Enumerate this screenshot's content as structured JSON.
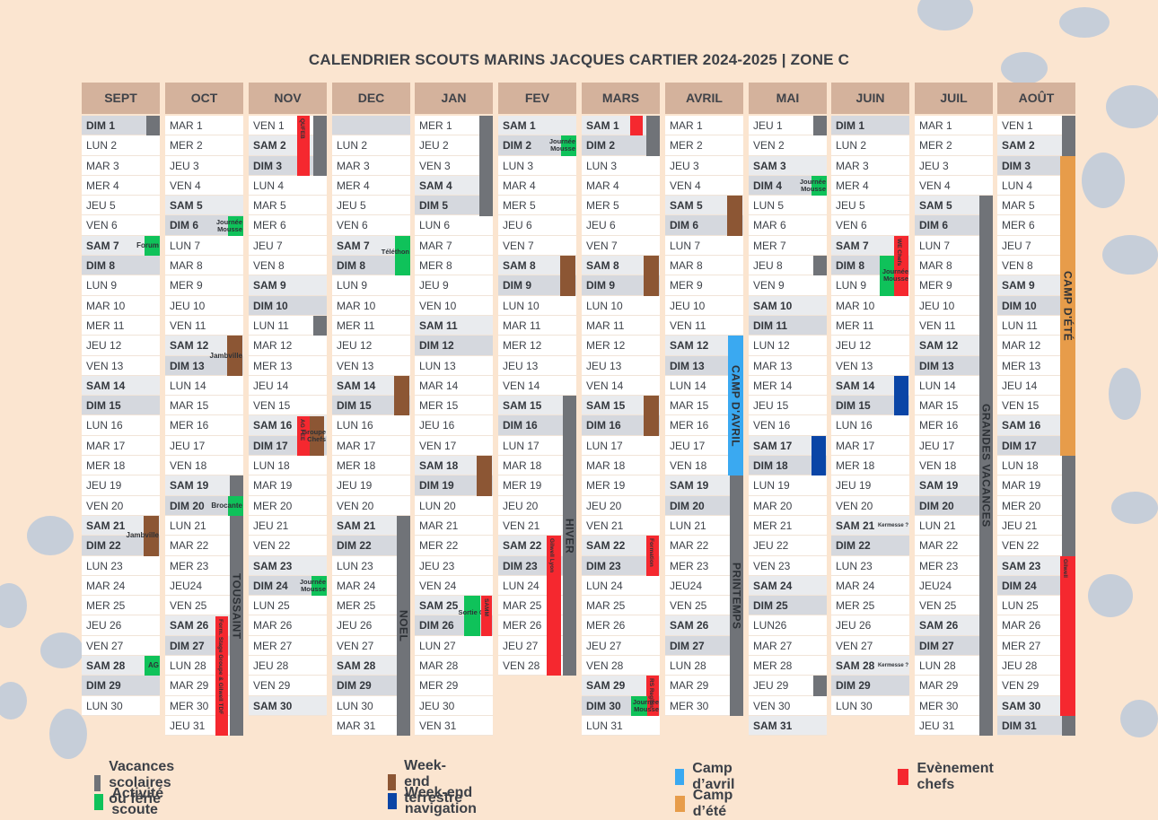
{
  "title": "CALENDRIER SCOUTS MARINS JACQUES CARTIER 2024-2025 | ZONE C",
  "colors": {
    "vacances": "#707378",
    "activite": "#0fc25a",
    "terrestre": "#8c5634",
    "navigation": "#0a45a6",
    "avril": "#3aa9f1",
    "ete": "#e79c4a",
    "chefs": "#f5282f"
  },
  "months": [
    {
      "name": "SEPT",
      "days": [
        "DIM 1",
        "LUN 2",
        "MAR 3",
        "MER 4",
        "JEU 5",
        "VEN 6",
        "SAM 7",
        "DIM 8",
        "LUN 9",
        "MAR 10",
        "MER 11",
        "JEU 12",
        "VEN 13",
        "SAM 14",
        "DIM 15",
        "LUN 16",
        "MAR 17",
        "MER 18",
        "JEU 19",
        "VEN 20",
        "SAM 21",
        "DIM 22",
        "LUN 23",
        "MAR 24",
        "MER 25",
        "JEU 26",
        "VEN 27",
        "SAM 28",
        "DIM 29",
        "LUN 30"
      ]
    },
    {
      "name": "OCT",
      "days": [
        "MAR 1",
        "MER 2",
        "JEU 3",
        "VEN 4",
        "SAM 5",
        "DIM 6",
        "LUN 7",
        "MAR 8",
        "MER 9",
        "JEU 10",
        "VEN 11",
        "SAM 12",
        "DIM 13",
        "LUN 14",
        "MAR 15",
        "MER 16",
        "JEU 17",
        "VEN 18",
        "SAM 19",
        "DIM 20",
        "LUN 21",
        "MAR 22",
        "MER 23",
        "JEU24",
        "VEN 25",
        "SAM 26",
        "DIM 27",
        "LUN 28",
        "MAR 29",
        "MER 30",
        "JEU 31"
      ]
    },
    {
      "name": "NOV",
      "days": [
        "VEN 1",
        "SAM 2",
        "DIM 3",
        "LUN 4",
        "MAR 5",
        "MER 6",
        "JEU 7",
        "VEN 8",
        "SAM 9",
        "DIM 10",
        "LUN 11",
        "MAR 12",
        "MER 13",
        "JEU 14",
        "VEN 15",
        "SAM 16",
        "DIM 17",
        "LUN 18",
        "MAR 19",
        "MER 20",
        "JEU 21",
        "VEN 22",
        "SAM 23",
        "DIM 24",
        "LUN 25",
        "MAR 26",
        "MER 27",
        "JEU 28",
        "VEN 29",
        "SAM 30"
      ]
    },
    {
      "name": "DEC",
      "days": [
        "",
        "LUN 2",
        "MAR 3",
        "MER 4",
        "JEU 5",
        "VEN 6",
        "SAM 7",
        "DIM 8",
        "LUN 9",
        "MAR 10",
        "MER 11",
        "JEU 12",
        "VEN 13",
        "SAM 14",
        "DIM 15",
        "LUN 16",
        "MAR 17",
        "MER 18",
        "JEU 19",
        "VEN 20",
        "SAM 21",
        "DIM 22",
        "LUN 23",
        "MAR 24",
        "MER 25",
        "JEU 26",
        "VEN 27",
        "SAM 28",
        "DIM 29",
        "LUN 30",
        "MAR 31"
      ]
    },
    {
      "name": "JAN",
      "days": [
        "MER 1",
        "JEU 2",
        "VEN 3",
        "SAM 4",
        "DIM 5",
        "LUN 6",
        "MAR 7",
        "MER 8",
        "JEU 9",
        "VEN 10",
        "SAM 11",
        "DIM 12",
        "LUN 13",
        "MAR 14",
        "MER 15",
        "JEU 16",
        "VEN 17",
        "SAM 18",
        "DIM 19",
        "LUN 20",
        "MAR 21",
        "MER 22",
        "JEU 23",
        "VEN 24",
        "SAM 25",
        "DIM 26",
        "LUN 27",
        "MAR 28",
        "MER 29",
        "JEU 30",
        "VEN 31"
      ]
    },
    {
      "name": "FEV",
      "days": [
        "SAM 1",
        "DIM 2",
        "LUN 3",
        "MAR 4",
        "MER 5",
        "JEU 6",
        "VEN 7",
        "SAM 8",
        "DIM 9",
        "LUN 10",
        "MAR 11",
        "MER 12",
        "JEU 13",
        "VEN 14",
        "SAM 15",
        "DIM 16",
        "LUN 17",
        "MAR 18",
        "MER 19",
        "JEU 20",
        "VEN 21",
        "SAM 22",
        "DIM 23",
        "LUN 24",
        "MAR 25",
        "MER 26",
        "JEU 27",
        "VEN 28"
      ]
    },
    {
      "name": "MARS",
      "days": [
        "SAM 1",
        "DIM 2",
        "LUN 3",
        "MAR 4",
        "MER 5",
        "JEU 6",
        "VEN 7",
        "SAM 8",
        "DIM 9",
        "LUN 10",
        "MAR 11",
        "MER 12",
        "JEU 13",
        "VEN 14",
        "SAM 15",
        "DIM 16",
        "LUN 17",
        "MAR 18",
        "MER 19",
        "JEU 20",
        "VEN 21",
        "SAM 22",
        "DIM 23",
        "LUN 24",
        "MAR 25",
        "MER 26",
        "JEU 27",
        "VEN 28",
        "SAM 29",
        "DIM 30",
        "LUN 31"
      ]
    },
    {
      "name": "AVRIL",
      "days": [
        "MAR 1",
        "MER 2",
        "JEU 3",
        "VEN 4",
        "SAM 5",
        "DIM 6",
        "LUN 7",
        "MAR 8",
        "MER 9",
        "JEU 10",
        "VEN 11",
        "SAM 12",
        "DIM 13",
        "LUN 14",
        "MAR 15",
        "MER 16",
        "JEU 17",
        "VEN 18",
        "SAM 19",
        "DIM 20",
        "LUN 21",
        "MAR 22",
        "MER 23",
        "JEU24",
        "VEN 25",
        "SAM 26",
        "DIM 27",
        "LUN 28",
        "MAR 29",
        "MER 30"
      ]
    },
    {
      "name": "MAI",
      "days": [
        "JEU 1",
        "VEN 2",
        "SAM 3",
        "DIM 4",
        "LUN 5",
        "MAR 6",
        "MER 7",
        "JEU 8",
        "VEN 9",
        "SAM 10",
        "DIM 11",
        "LUN 12",
        "MAR 13",
        "MER 14",
        "JEU 15",
        "VEN 16",
        "SAM 17",
        "DIM 18",
        "LUN 19",
        "MAR 20",
        "MER 21",
        "JEU 22",
        "VEN 23",
        "SAM 24",
        "DIM 25",
        "LUN26",
        "MAR 27",
        "MER 28",
        "JEU 29",
        "VEN 30",
        "SAM 31"
      ]
    },
    {
      "name": "JUIN",
      "days": [
        "DIM 1",
        "LUN 2",
        "MAR 3",
        "MER 4",
        "JEU 5",
        "VEN 6",
        "SAM 7",
        "DIM 8",
        "LUN 9",
        "MAR 10",
        "MER 11",
        "JEU 12",
        "VEN 13",
        "SAM 14",
        "DIM 15",
        "LUN 16",
        "MAR 17",
        "MER 18",
        "JEU 19",
        "VEN 20",
        "SAM 21",
        "DIM 22",
        "LUN 23",
        "MAR 24",
        "MER 25",
        "JEU 26",
        "VEN 27",
        "SAM 28",
        "DIM 29",
        "LUN 30"
      ]
    },
    {
      "name": "JUIL",
      "days": [
        "MAR 1",
        "MER 2",
        "JEU 3",
        "VEN 4",
        "SAM 5",
        "DIM 6",
        "LUN 7",
        "MAR 8",
        "MER 9",
        "JEU 10",
        "VEN 11",
        "SAM 12",
        "DIM 13",
        "LUN 14",
        "MAR 15",
        "MER 16",
        "JEU 17",
        "VEN 18",
        "SAM 19",
        "DIM 20",
        "LUN 21",
        "MAR 22",
        "MER 23",
        "JEU24",
        "VEN 25",
        "SAM 26",
        "DIM 27",
        "LUN 28",
        "MAR 29",
        "MER 30",
        "JEU 31"
      ]
    },
    {
      "name": "AOÛT",
      "days": [
        "VEN 1",
        "SAM 2",
        "DIM 3",
        "LUN 4",
        "MAR 5",
        "MER 6",
        "JEU 7",
        "VEN 8",
        "SAM 9",
        "DIM 10",
        "LUN 11",
        "MAR 12",
        "MER 13",
        "JEU 14",
        "VEN 15",
        "SAM 16",
        "DIM 17",
        "LUN 18",
        "MAR 19",
        "MER 20",
        "JEU 21",
        "VEN 22",
        "SAM 23",
        "DIM 24",
        "LUN 25",
        "MAR 26",
        "MER 27",
        "JEU 28",
        "VEN 29",
        "SAM 30",
        "DIM 31"
      ]
    }
  ],
  "events": [
    {
      "m": 0,
      "start": 1,
      "end": 1,
      "type": "vacances",
      "label": ""
    },
    {
      "m": 0,
      "start": 7,
      "end": 7,
      "type": "activite",
      "label": "Forum"
    },
    {
      "m": 0,
      "start": 21,
      "end": 22,
      "type": "terrestre",
      "label": "Jambville"
    },
    {
      "m": 0,
      "start": 28,
      "end": 28,
      "type": "activite",
      "label": "AG"
    },
    {
      "m": 1,
      "start": 6,
      "end": 6,
      "type": "activite",
      "label": "Journée Mousse"
    },
    {
      "m": 1,
      "start": 12,
      "end": 13,
      "type": "terrestre",
      "label": "Jambville"
    },
    {
      "m": 1,
      "start": 19,
      "end": 31,
      "type": "vacances",
      "label": "TOUSSAINT"
    },
    {
      "m": 1,
      "start": 20,
      "end": 20,
      "type": "activite",
      "label": "Brocante"
    },
    {
      "m": 1,
      "start": 26,
      "end": 31,
      "type": "chefs",
      "label": "Form. Stage Groupe & Gilwell TDF"
    },
    {
      "m": 2,
      "start": 1,
      "end": 3,
      "type": "vacances",
      "label": ""
    },
    {
      "m": 2,
      "start": 1,
      "end": 3,
      "type": "chefs",
      "label": "QUFEB"
    },
    {
      "m": 2,
      "start": 11,
      "end": 11,
      "type": "vacances",
      "label": ""
    },
    {
      "m": 2,
      "start": 16,
      "end": 17,
      "type": "chefs",
      "label": "AG FEE"
    },
    {
      "m": 2,
      "start": 16,
      "end": 17,
      "type": "terrestre",
      "label": "Groupe Chefs"
    },
    {
      "m": 2,
      "start": 24,
      "end": 24,
      "type": "activite",
      "label": "Journée Mousse"
    },
    {
      "m": 3,
      "start": 7,
      "end": 8,
      "type": "activite",
      "label": "Téléthon"
    },
    {
      "m": 3,
      "start": 14,
      "end": 15,
      "type": "terrestre",
      "label": ""
    },
    {
      "m": 3,
      "start": 21,
      "end": 31,
      "type": "vacances",
      "label": "NOEL"
    },
    {
      "m": 4,
      "start": 1,
      "end": 5,
      "type": "vacances",
      "label": ""
    },
    {
      "m": 4,
      "start": 18,
      "end": 19,
      "type": "terrestre",
      "label": ""
    },
    {
      "m": 4,
      "start": 25,
      "end": 26,
      "type": "activite",
      "label": "Sortie Gilli"
    },
    {
      "m": 4,
      "start": 25,
      "end": 26,
      "type": "chefs",
      "label": "SAMM"
    },
    {
      "m": 5,
      "start": 2,
      "end": 2,
      "type": "activite",
      "label": "Journée Mousse"
    },
    {
      "m": 5,
      "start": 8,
      "end": 9,
      "type": "terrestre",
      "label": ""
    },
    {
      "m": 5,
      "start": 15,
      "end": 28,
      "type": "vacances",
      "label": "HIVER"
    },
    {
      "m": 5,
      "start": 22,
      "end": 28,
      "type": "chefs",
      "label": "Gilwell Lyon"
    },
    {
      "m": 6,
      "start": 1,
      "end": 2,
      "type": "vacances",
      "label": ""
    },
    {
      "m": 6,
      "start": 1,
      "end": 1,
      "type": "chefs",
      "label": ""
    },
    {
      "m": 6,
      "start": 8,
      "end": 9,
      "type": "terrestre",
      "label": ""
    },
    {
      "m": 6,
      "start": 15,
      "end": 16,
      "type": "terrestre",
      "label": ""
    },
    {
      "m": 6,
      "start": 22,
      "end": 23,
      "type": "chefs",
      "label": "Formation"
    },
    {
      "m": 6,
      "start": 29,
      "end": 30,
      "type": "chefs",
      "label": "RS Region"
    },
    {
      "m": 6,
      "start": 30,
      "end": 30,
      "type": "activite",
      "label": "Journée Mousse"
    },
    {
      "m": 7,
      "start": 5,
      "end": 6,
      "type": "terrestre",
      "label": ""
    },
    {
      "m": 7,
      "start": 12,
      "end": 18,
      "type": "avril",
      "label": "CAMP D'AVRIL"
    },
    {
      "m": 7,
      "start": 19,
      "end": 30,
      "type": "vacances",
      "label": "PRINTEMPS"
    },
    {
      "m": 8,
      "start": 1,
      "end": 1,
      "type": "vacances",
      "label": ""
    },
    {
      "m": 8,
      "start": 4,
      "end": 4,
      "type": "activite",
      "label": "Journée Mousse"
    },
    {
      "m": 8,
      "start": 8,
      "end": 8,
      "type": "vacances",
      "label": ""
    },
    {
      "m": 8,
      "start": 17,
      "end": 18,
      "type": "navigation",
      "label": ""
    },
    {
      "m": 8,
      "start": 29,
      "end": 29,
      "type": "vacances",
      "label": ""
    },
    {
      "m": 9,
      "start": 7,
      "end": 9,
      "type": "chefs",
      "label": "WE Chefs"
    },
    {
      "m": 9,
      "start": 8,
      "end": 9,
      "type": "activite",
      "label": "Journée Mousse"
    },
    {
      "m": 9,
      "start": 14,
      "end": 15,
      "type": "navigation",
      "label": ""
    },
    {
      "m": 9,
      "start": 21,
      "end": 21,
      "type": "none",
      "label": "Kermesse ?"
    },
    {
      "m": 9,
      "start": 28,
      "end": 28,
      "type": "none",
      "label": "Kermesse ?"
    },
    {
      "m": 10,
      "start": 5,
      "end": 31,
      "type": "vacances",
      "label": "GRANDES VACANCES"
    },
    {
      "m": 11,
      "start": 1,
      "end": 3,
      "type": "vacances",
      "label": ""
    },
    {
      "m": 11,
      "start": 3,
      "end": 17,
      "type": "ete",
      "label": "CAMP D'ÉTÉ"
    },
    {
      "m": 11,
      "start": 18,
      "end": 23,
      "type": "vacances",
      "label": ""
    },
    {
      "m": 11,
      "start": 23,
      "end": 30,
      "type": "chefs",
      "label": "Gilwell"
    },
    {
      "m": 11,
      "start": 31,
      "end": 31,
      "type": "vacances",
      "label": ""
    }
  ],
  "legend": [
    {
      "type": "vacances",
      "label": "Vacances scolaires ou férié"
    },
    {
      "type": "activite",
      "label": "Activité scoute"
    },
    {
      "type": "terrestre",
      "label": "Week-end terrestre"
    },
    {
      "type": "navigation",
      "label": "Week-end navigation"
    },
    {
      "type": "avril",
      "label": "Camp d’avril"
    },
    {
      "type": "ete",
      "label": "Camp d’été"
    },
    {
      "type": "chefs",
      "label": "Evènement chefs"
    }
  ]
}
